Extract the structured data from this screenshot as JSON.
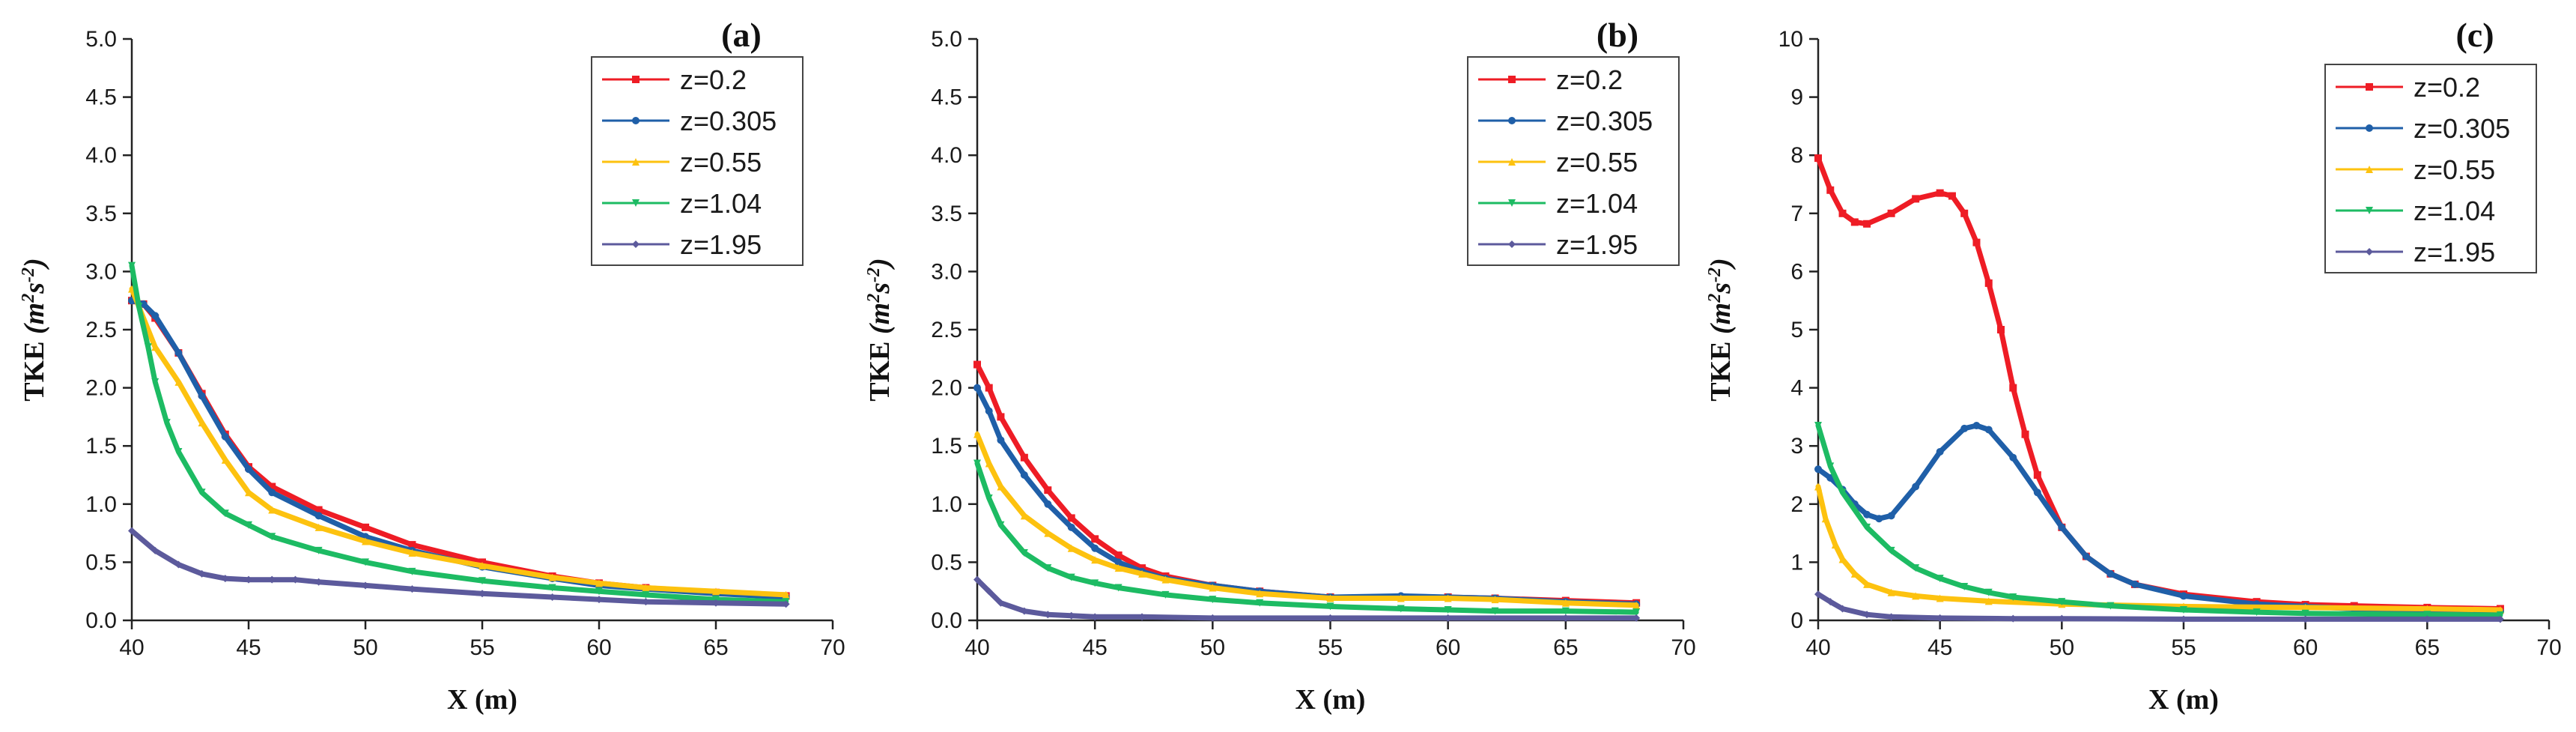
{
  "chart_data": [
    {
      "type": "line",
      "panel_label": "(a)",
      "xlabel": "X (m)",
      "ylabel_main": "TKE",
      "ylabel_unit": "(m",
      "ylabel_sup1": "2",
      "ylabel_mid": "s",
      "ylabel_sup2": "-2",
      "ylabel_close": ")",
      "xlim": [
        40,
        70
      ],
      "ylim": [
        0,
        5
      ],
      "xticks": [
        "40",
        "45",
        "50",
        "55",
        "60",
        "65",
        "70"
      ],
      "yticks": [
        "0.0",
        "0.5",
        "1.0",
        "1.5",
        "2.0",
        "2.5",
        "3.0",
        "3.5",
        "4.0",
        "4.5",
        "5.0"
      ],
      "legend_position": "top-right",
      "series": [
        {
          "name": "z=0.2",
          "color": "#ee1c25",
          "marker": "square",
          "x": [
            40,
            40.5,
            41,
            42,
            43,
            44,
            45,
            46,
            48,
            50,
            52,
            55,
            58,
            60,
            62,
            65,
            68
          ],
          "y": [
            2.75,
            2.72,
            2.6,
            2.3,
            1.95,
            1.6,
            1.32,
            1.15,
            0.95,
            0.8,
            0.65,
            0.5,
            0.38,
            0.32,
            0.28,
            0.24,
            0.21
          ]
        },
        {
          "name": "z=0.305",
          "color": "#1f5fa8",
          "marker": "circle",
          "x": [
            40,
            40.5,
            41,
            42,
            43,
            44,
            45,
            46,
            48,
            50,
            52,
            55,
            58,
            60,
            62,
            65,
            68
          ],
          "y": [
            2.75,
            2.72,
            2.62,
            2.3,
            1.93,
            1.58,
            1.3,
            1.1,
            0.9,
            0.72,
            0.6,
            0.46,
            0.36,
            0.3,
            0.27,
            0.23,
            0.2
          ]
        },
        {
          "name": "z=0.55",
          "color": "#fdc20f",
          "marker": "triangle-up",
          "x": [
            40,
            40.5,
            41,
            42,
            43,
            44,
            45,
            46,
            48,
            50,
            52,
            55,
            58,
            60,
            62,
            65,
            68
          ],
          "y": [
            2.85,
            2.6,
            2.35,
            2.05,
            1.7,
            1.38,
            1.1,
            0.95,
            0.8,
            0.68,
            0.58,
            0.47,
            0.37,
            0.32,
            0.28,
            0.25,
            0.22
          ]
        },
        {
          "name": "z=1.04",
          "color": "#1dbb63",
          "marker": "triangle-down",
          "x": [
            40,
            40.3,
            40.7,
            41,
            41.5,
            42,
            43,
            44,
            45,
            46,
            48,
            50,
            52,
            55,
            58,
            60,
            62,
            65,
            68
          ],
          "y": [
            3.05,
            2.7,
            2.35,
            2.05,
            1.7,
            1.45,
            1.1,
            0.92,
            0.82,
            0.72,
            0.6,
            0.5,
            0.42,
            0.34,
            0.28,
            0.25,
            0.22,
            0.18,
            0.16
          ]
        },
        {
          "name": "z=1.95",
          "color": "#5c5a9c",
          "marker": "diamond",
          "x": [
            40,
            41,
            42,
            43,
            44,
            45,
            46,
            47,
            48,
            50,
            52,
            55,
            58,
            60,
            62,
            65,
            68
          ],
          "y": [
            0.77,
            0.6,
            0.48,
            0.4,
            0.36,
            0.35,
            0.35,
            0.35,
            0.33,
            0.3,
            0.27,
            0.23,
            0.2,
            0.18,
            0.16,
            0.15,
            0.14
          ]
        }
      ]
    },
    {
      "type": "line",
      "panel_label": "(b)",
      "xlabel": "X (m)",
      "ylabel_main": "TKE",
      "ylabel_unit": "(m",
      "ylabel_sup1": "2",
      "ylabel_mid": "s",
      "ylabel_sup2": "-2",
      "ylabel_close": ")",
      "xlim": [
        40,
        70
      ],
      "ylim": [
        0,
        5
      ],
      "xticks": [
        "40",
        "45",
        "50",
        "55",
        "60",
        "65",
        "70"
      ],
      "yticks": [
        "0.0",
        "0.5",
        "1.0",
        "1.5",
        "2.0",
        "2.5",
        "3.0",
        "3.5",
        "4.0",
        "4.5",
        "5.0"
      ],
      "legend_position": "top-right",
      "series": [
        {
          "name": "z=0.2",
          "color": "#ee1c25",
          "marker": "square",
          "x": [
            40,
            40.5,
            41,
            42,
            43,
            44,
            45,
            46,
            47,
            48,
            50,
            52,
            55,
            58,
            60,
            62,
            65,
            68
          ],
          "y": [
            2.2,
            2.0,
            1.75,
            1.4,
            1.12,
            0.88,
            0.7,
            0.56,
            0.45,
            0.38,
            0.3,
            0.25,
            0.2,
            0.2,
            0.2,
            0.19,
            0.17,
            0.15
          ]
        },
        {
          "name": "z=0.305",
          "color": "#1f5fa8",
          "marker": "circle",
          "x": [
            40,
            40.5,
            41,
            42,
            43,
            44,
            45,
            46,
            47,
            48,
            50,
            52,
            55,
            58,
            60,
            62,
            65,
            68
          ],
          "y": [
            2.0,
            1.8,
            1.55,
            1.25,
            1.0,
            0.8,
            0.62,
            0.5,
            0.42,
            0.36,
            0.3,
            0.25,
            0.2,
            0.21,
            0.2,
            0.19,
            0.16,
            0.14
          ]
        },
        {
          "name": "z=0.55",
          "color": "#fdc20f",
          "marker": "triangle-up",
          "x": [
            40,
            40.5,
            41,
            42,
            43,
            44,
            45,
            46,
            47,
            48,
            50,
            52,
            55,
            58,
            60,
            62,
            65,
            68
          ],
          "y": [
            1.6,
            1.35,
            1.15,
            0.9,
            0.75,
            0.62,
            0.52,
            0.45,
            0.4,
            0.35,
            0.28,
            0.23,
            0.19,
            0.19,
            0.19,
            0.18,
            0.15,
            0.13
          ]
        },
        {
          "name": "z=1.04",
          "color": "#1dbb63",
          "marker": "triangle-down",
          "x": [
            40,
            40.5,
            41,
            42,
            43,
            44,
            45,
            46,
            48,
            50,
            52,
            55,
            58,
            60,
            62,
            65,
            68
          ],
          "y": [
            1.35,
            1.05,
            0.82,
            0.58,
            0.45,
            0.37,
            0.32,
            0.28,
            0.22,
            0.18,
            0.15,
            0.12,
            0.1,
            0.09,
            0.08,
            0.08,
            0.07
          ]
        },
        {
          "name": "z=1.95",
          "color": "#5c5a9c",
          "marker": "diamond",
          "x": [
            40,
            40.5,
            41,
            42,
            43,
            44,
            45,
            47,
            50,
            55,
            60,
            65,
            68
          ],
          "y": [
            0.35,
            0.25,
            0.15,
            0.08,
            0.05,
            0.04,
            0.03,
            0.03,
            0.02,
            0.02,
            0.02,
            0.02,
            0.02
          ]
        }
      ]
    },
    {
      "type": "line",
      "panel_label": "(c)",
      "xlabel": "X (m)",
      "ylabel_main": "TKE",
      "ylabel_unit": "(m",
      "ylabel_sup1": "2",
      "ylabel_mid": "s",
      "ylabel_sup2": "-2",
      "ylabel_close": ")",
      "xlim": [
        40,
        70
      ],
      "ylim": [
        0,
        10
      ],
      "xticks": [
        "40",
        "45",
        "50",
        "55",
        "60",
        "65",
        "70"
      ],
      "yticks": [
        "0",
        "1",
        "2",
        "3",
        "4",
        "5",
        "6",
        "7",
        "8",
        "9",
        "10"
      ],
      "legend_position": "top-right",
      "series": [
        {
          "name": "z=0.2",
          "color": "#ee1c25",
          "marker": "square",
          "x": [
            40,
            40.5,
            41,
            41.5,
            42,
            43,
            44,
            45,
            45.5,
            46,
            46.5,
            47,
            47.5,
            48,
            48.5,
            49,
            50,
            51,
            52,
            53,
            55,
            58,
            60,
            62,
            65,
            68
          ],
          "y": [
            7.95,
            7.4,
            7.0,
            6.85,
            6.82,
            7.0,
            7.25,
            7.35,
            7.3,
            7.0,
            6.5,
            5.8,
            5.0,
            4.0,
            3.2,
            2.5,
            1.6,
            1.1,
            0.8,
            0.62,
            0.45,
            0.32,
            0.27,
            0.25,
            0.22,
            0.2
          ]
        },
        {
          "name": "z=0.305",
          "color": "#1f5fa8",
          "marker": "circle",
          "x": [
            40,
            40.5,
            41,
            41.5,
            42,
            42.5,
            43,
            44,
            45,
            46,
            46.5,
            47,
            48,
            49,
            50,
            51,
            52,
            53,
            55,
            58,
            60,
            62,
            65,
            68
          ],
          "y": [
            2.6,
            2.45,
            2.25,
            2.0,
            1.82,
            1.75,
            1.8,
            2.3,
            2.9,
            3.3,
            3.35,
            3.28,
            2.8,
            2.2,
            1.6,
            1.1,
            0.8,
            0.62,
            0.42,
            0.28,
            0.24,
            0.2,
            0.17,
            0.15
          ]
        },
        {
          "name": "z=0.55",
          "color": "#fdc20f",
          "marker": "triangle-up",
          "x": [
            40,
            40.3,
            40.7,
            41,
            41.5,
            42,
            43,
            44,
            45,
            47,
            50,
            55,
            60,
            65,
            68
          ],
          "y": [
            2.3,
            1.75,
            1.3,
            1.05,
            0.8,
            0.62,
            0.48,
            0.42,
            0.38,
            0.33,
            0.28,
            0.24,
            0.22,
            0.2,
            0.18
          ]
        },
        {
          "name": "z=1.04",
          "color": "#1dbb63",
          "marker": "triangle-down",
          "x": [
            40,
            40.5,
            41,
            42,
            43,
            44,
            45,
            46,
            47,
            48,
            50,
            52,
            55,
            58,
            60,
            65,
            68
          ],
          "y": [
            3.35,
            2.65,
            2.2,
            1.6,
            1.2,
            0.9,
            0.72,
            0.58,
            0.48,
            0.4,
            0.32,
            0.25,
            0.18,
            0.14,
            0.12,
            0.1,
            0.09
          ]
        },
        {
          "name": "z=1.95",
          "color": "#5c5a9c",
          "marker": "diamond",
          "x": [
            40,
            40.5,
            41,
            42,
            43,
            45,
            48,
            50,
            55,
            60,
            65,
            68
          ],
          "y": [
            0.45,
            0.32,
            0.2,
            0.1,
            0.06,
            0.04,
            0.03,
            0.03,
            0.02,
            0.02,
            0.02,
            0.02
          ]
        }
      ]
    }
  ]
}
